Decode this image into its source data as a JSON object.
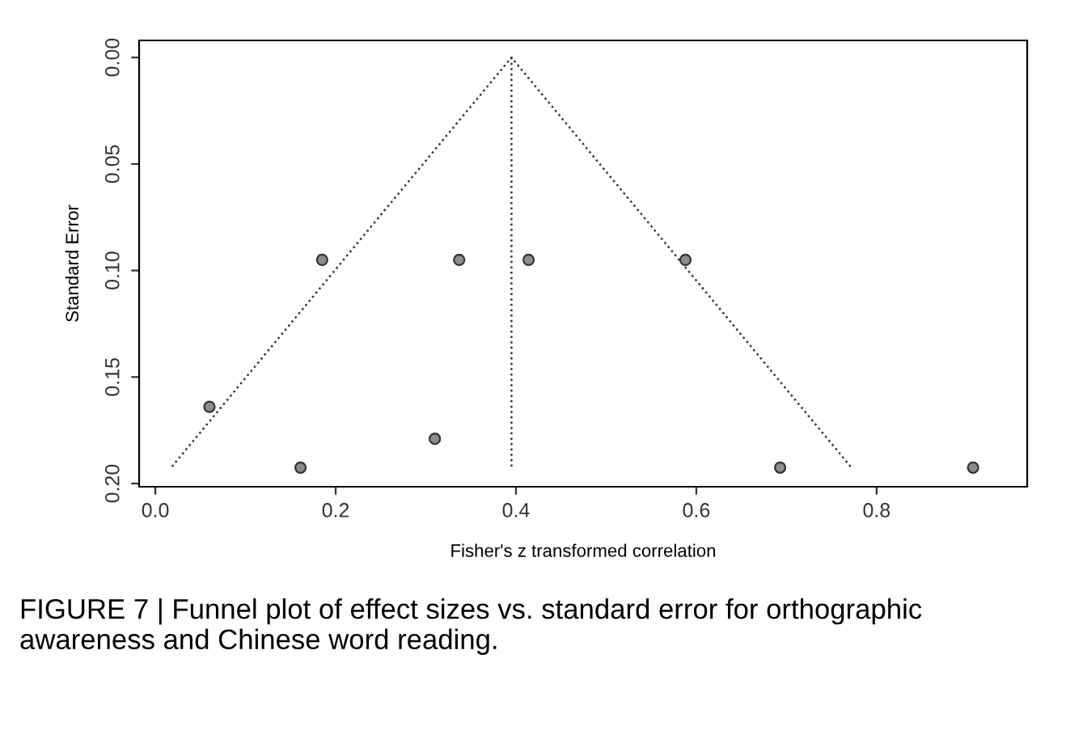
{
  "chart_data": {
    "type": "scatter",
    "xlabel": "Fisher's z transformed correlation",
    "ylabel": "Standard Error",
    "xlim": [
      -0.018,
      0.967
    ],
    "ylim": [
      0.2015,
      -0.008
    ],
    "xticks": [
      {
        "value": 0,
        "label": "0.0"
      },
      0.2,
      0.4,
      0.6,
      0.8
    ],
    "yticks": [
      {
        "value": 0,
        "label": "0.00"
      },
      0.05,
      {
        "value": 0.1,
        "label": "0.10"
      },
      0.15,
      {
        "value": 0.2,
        "label": "0.20"
      }
    ],
    "grid": false,
    "legend": false,
    "series": [
      {
        "color": "#8c8c8c",
        "marker": "circle",
        "x": [
          0.06,
          0.185,
          0.337,
          0.414,
          0.588,
          0.693,
          0.907,
          0.161,
          0.31
        ],
        "values": [
          0.164,
          0.095,
          0.095,
          0.095,
          0.095,
          0.1925,
          0.1925,
          0.1925,
          0.179
        ]
      },
      {
        "type": "line",
        "color": "#333333",
        "line_style": "dotted",
        "marker": "none",
        "x": [
          0.0185,
          0.395,
          0.771
        ],
        "values": [
          0.192,
          0,
          0.192
        ]
      },
      {
        "type": "line",
        "color": "#333333",
        "line_style": "dotted",
        "marker": "none",
        "x": [
          0.395,
          0.395
        ],
        "values": [
          0,
          0.192
        ]
      }
    ],
    "annotations": [
      "FIGURE 7 | Funnel plot of effect sizes vs. standard error for orthographic awareness and Chinese word reading."
    ]
  }
}
